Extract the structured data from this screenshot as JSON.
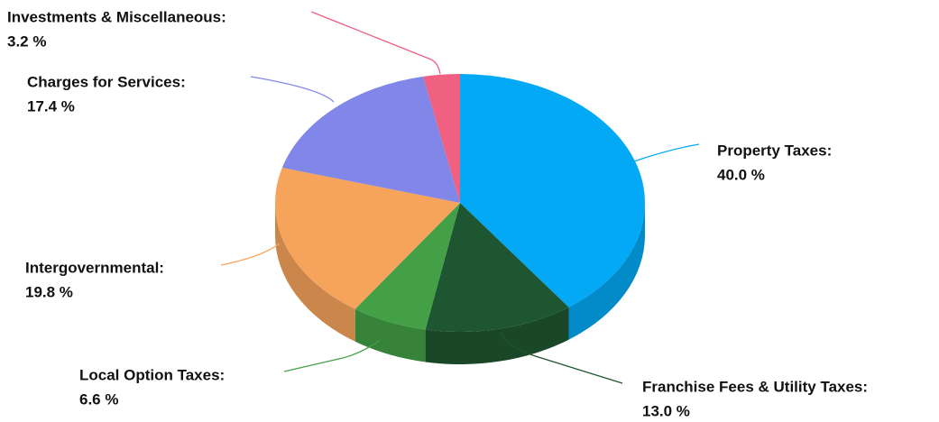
{
  "chart_data": {
    "type": "pie3d",
    "categories": [
      "Property Taxes:",
      "Franchise Fees & Utility Taxes:",
      "Local Option Taxes:",
      "Intergovernmental:",
      "Charges for Services:",
      "Investments & Miscellaneous:"
    ],
    "values": [
      40.0,
      13.0,
      6.6,
      19.8,
      17.4,
      3.2
    ],
    "value_labels": [
      "40.0 %",
      "13.0 %",
      "6.6 %",
      "19.8 %",
      "17.4 %",
      "3.2 %"
    ],
    "colors": [
      "#03a9f4",
      "#1e5631",
      "#43a047",
      "#f6a35c",
      "#8187e8",
      "#f06080"
    ]
  }
}
